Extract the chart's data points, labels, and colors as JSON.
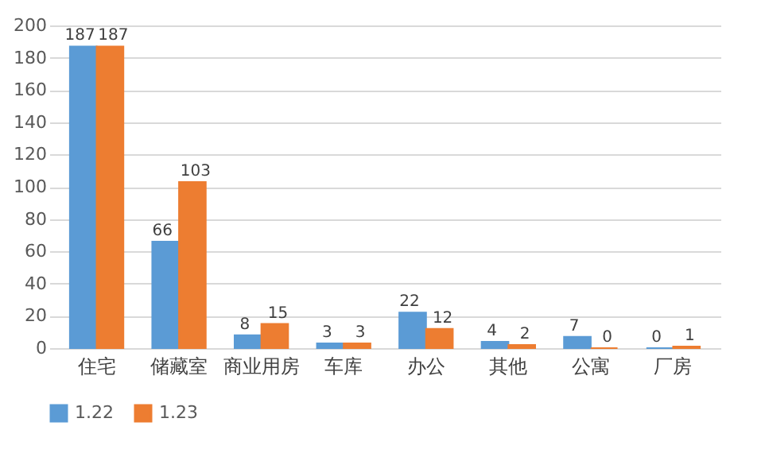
{
  "chart_data": {
    "type": "bar",
    "categories": [
      "住宅",
      "储藏室",
      "商业用房",
      "车库",
      "办公",
      "其他",
      "公寓",
      "厂房"
    ],
    "series": [
      {
        "name": "1.22",
        "color": "#5b9bd5",
        "values": [
          187,
          66,
          8,
          3,
          22,
          4,
          7,
          0
        ]
      },
      {
        "name": "1.23",
        "color": "#ed7d31",
        "values": [
          187,
          103,
          15,
          3,
          12,
          2,
          0,
          1
        ]
      }
    ],
    "ylim": [
      0,
      200
    ],
    "yticks": [
      0,
      20,
      40,
      60,
      80,
      100,
      120,
      140,
      160,
      180,
      200
    ],
    "grid": "y",
    "legend": "bottom",
    "data_labels": true
  }
}
